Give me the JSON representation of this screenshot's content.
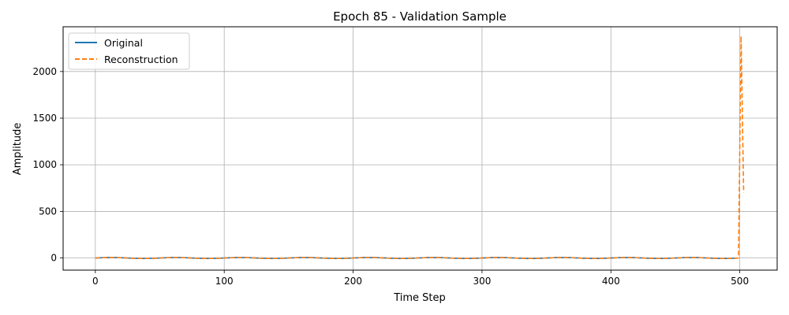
{
  "chart_data": {
    "type": "line",
    "title": "Epoch 85 - Validation Sample",
    "xlabel": "Time Step",
    "ylabel": "Amplitude",
    "xlim": [
      -25,
      529
    ],
    "ylim": [
      -130,
      2480
    ],
    "xticks": [
      0,
      100,
      200,
      300,
      400,
      500
    ],
    "yticks": [
      0,
      500,
      1000,
      1500,
      2000
    ],
    "grid": true,
    "legend_position": "top-left",
    "series": [
      {
        "name": "Original",
        "color": "#1f77b4",
        "style": "solid",
        "description": "low-amplitude oscillation around 0",
        "x_range": [
          0,
          499
        ],
        "amplitude": 5,
        "period": 50
      },
      {
        "name": "Reconstruction",
        "color": "#ff7f0e",
        "style": "dashed",
        "x_range": [
          0,
          503
        ],
        "amplitude": 5,
        "period": 50,
        "spike_points": [
          {
            "x": 499,
            "y": 0
          },
          {
            "x": 501,
            "y": 2380
          },
          {
            "x": 503,
            "y": 700
          }
        ]
      }
    ]
  }
}
